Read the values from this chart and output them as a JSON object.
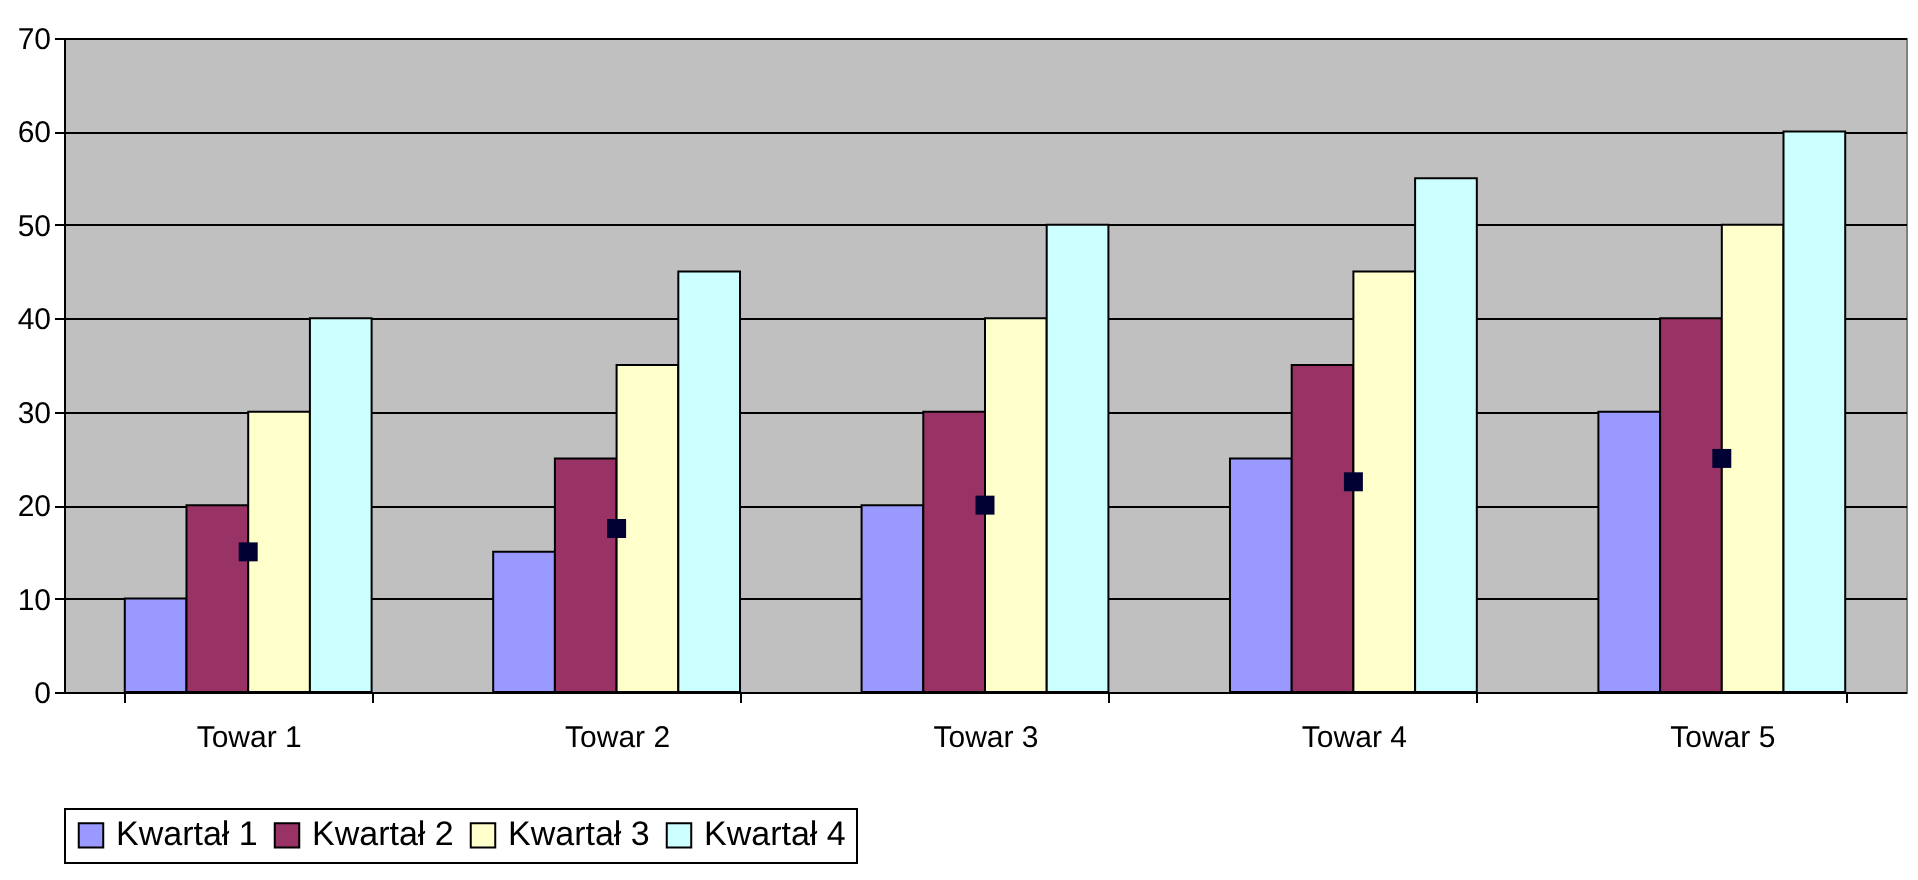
{
  "chart_data": {
    "type": "bar",
    "categories": [
      "Towar 1",
      "Towar 2",
      "Towar 3",
      "Towar 4",
      "Towar 5"
    ],
    "series": [
      {
        "name": "Kwartał 1",
        "color": "#9999ff",
        "values": [
          10,
          15,
          20,
          25,
          30
        ]
      },
      {
        "name": "Kwartał 2",
        "color": "#993366",
        "values": [
          20,
          25,
          30,
          35,
          40
        ]
      },
      {
        "name": "Kwartał 3",
        "color": "#ffffcc",
        "values": [
          30,
          35,
          40,
          45,
          50
        ]
      },
      {
        "name": "Kwartał 4",
        "color": "#ccffff",
        "values": [
          40,
          45,
          50,
          55,
          60
        ]
      },
      {
        "type": "scatter",
        "marker": "square",
        "color": "#000033",
        "x": [
          "Towar 1",
          "Towar 2",
          "Towar 3",
          "Towar 4",
          "Towar 5"
        ],
        "values": [
          15,
          17.5,
          20,
          22.5,
          25
        ]
      }
    ],
    "ylim": [
      0,
      70
    ],
    "yticks": [
      0,
      10,
      20,
      30,
      40,
      50,
      60,
      70
    ],
    "grid": "y",
    "legend": "bottom"
  }
}
